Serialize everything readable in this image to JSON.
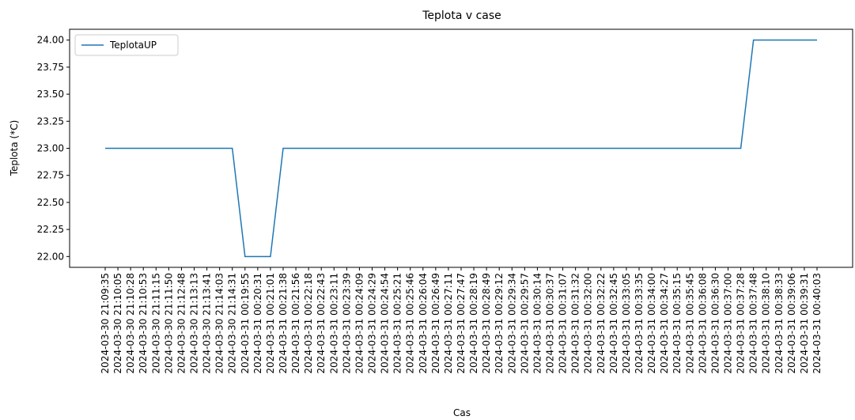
{
  "chart_data": {
    "type": "line",
    "title": "Teplota v case",
    "x_label": "Cas",
    "y_label": "Teplota (*C)",
    "categories": [
      "2024-03-30 21:09:35",
      "2024-03-30 21:10:05",
      "2024-03-30 21:10:28",
      "2024-03-30 21:10:53",
      "2024-03-30 21:11:15",
      "2024-03-30 21:11:50",
      "2024-03-30 21:12:48",
      "2024-03-30 21:13:13",
      "2024-03-30 21:13:41",
      "2024-03-30 21:14:03",
      "2024-03-30 21:14:31",
      "2024-03-31 00:19:55",
      "2024-03-31 00:20:31",
      "2024-03-31 00:21:01",
      "2024-03-31 00:21:38",
      "2024-03-31 00:21:56",
      "2024-03-31 00:22:18",
      "2024-03-31 00:22:43",
      "2024-03-31 00:23:11",
      "2024-03-31 00:23:39",
      "2024-03-31 00:24:09",
      "2024-03-31 00:24:29",
      "2024-03-31 00:24:54",
      "2024-03-31 00:25:21",
      "2024-03-31 00:25:46",
      "2024-03-31 00:26:04",
      "2024-03-31 00:26:49",
      "2024-03-31 00:27:11",
      "2024-03-31 00:27:47",
      "2024-03-31 00:28:19",
      "2024-03-31 00:28:49",
      "2024-03-31 00:29:12",
      "2024-03-31 00:29:34",
      "2024-03-31 00:29:57",
      "2024-03-31 00:30:14",
      "2024-03-31 00:30:37",
      "2024-03-31 00:31:07",
      "2024-03-31 00:31:32",
      "2024-03-31 00:32:00",
      "2024-03-31 00:32:22",
      "2024-03-31 00:32:45",
      "2024-03-31 00:33:05",
      "2024-03-31 00:33:35",
      "2024-03-31 00:34:00",
      "2024-03-31 00:34:27",
      "2024-03-31 00:35:15",
      "2024-03-31 00:35:45",
      "2024-03-31 00:36:08",
      "2024-03-31 00:36:30",
      "2024-03-31 00:37:00",
      "2024-03-31 00:37:28",
      "2024-03-31 00:37:48",
      "2024-03-31 00:38:10",
      "2024-03-31 00:38:33",
      "2024-03-31 00:39:06",
      "2024-03-31 00:39:31",
      "2024-03-31 00:40:03"
    ],
    "series": [
      {
        "name": "TeplotaUP",
        "color": "#1f77b4",
        "values": [
          23,
          23,
          23,
          23,
          23,
          23,
          23,
          23,
          23,
          23,
          23,
          22,
          22,
          22,
          23,
          23,
          23,
          23,
          23,
          23,
          23,
          23,
          23,
          23,
          23,
          23,
          23,
          23,
          23,
          23,
          23,
          23,
          23,
          23,
          23,
          23,
          23,
          23,
          23,
          23,
          23,
          23,
          23,
          23,
          23,
          23,
          23,
          23,
          23,
          23,
          23,
          24,
          24,
          24,
          24,
          24,
          24
        ]
      }
    ],
    "ylim": [
      21.9,
      24.1
    ],
    "yticks": [
      {
        "value": 22,
        "label": "22.00"
      },
      {
        "value": 22.25,
        "label": "22.25"
      },
      {
        "value": 22.5,
        "label": "22.50"
      },
      {
        "value": 22.75,
        "label": "22.75"
      },
      {
        "value": 23,
        "label": "23.00"
      },
      {
        "value": 23.25,
        "label": "23.25"
      },
      {
        "value": 23.5,
        "label": "23.50"
      },
      {
        "value": 23.75,
        "label": "23.75"
      },
      {
        "value": 24,
        "label": "24.00"
      }
    ],
    "legend": "upper left",
    "grid": false
  }
}
